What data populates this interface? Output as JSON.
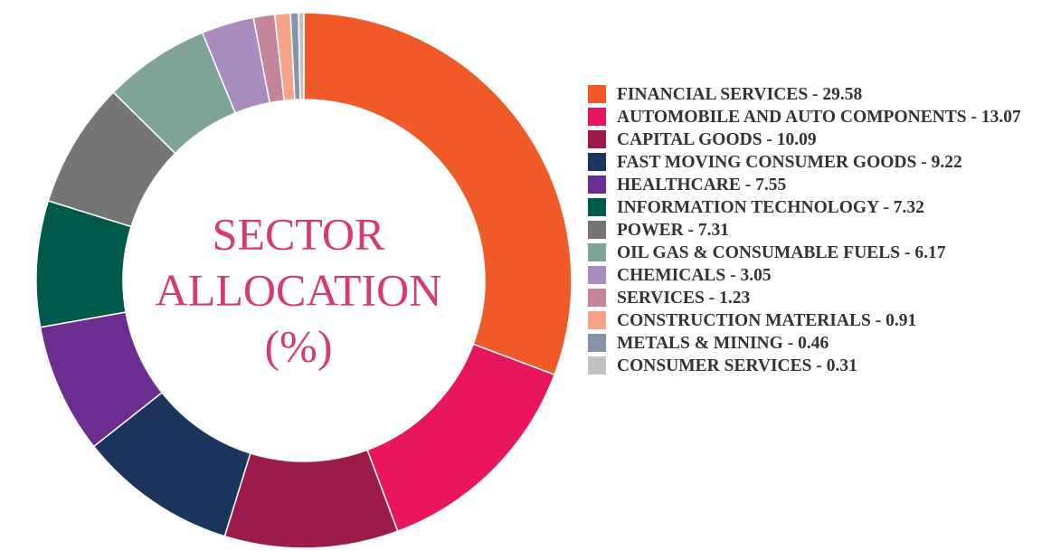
{
  "chart_data": {
    "type": "donut",
    "title_lines": [
      "SECTOR",
      "ALLOCATION",
      "(%)"
    ],
    "label_separator": " - ",
    "categories": [
      "FINANCIAL SERVICES",
      "AUTOMOBILE AND AUTO COMPONENTS",
      "CAPITAL GOODS",
      "FAST MOVING CONSUMER GOODS",
      "HEALTHCARE",
      "INFORMATION TECHNOLOGY",
      "POWER",
      "OIL GAS & CONSUMABLE FUELS",
      "CHEMICALS",
      "SERVICES",
      "CONSTRUCTION MATERIALS",
      "METALS & MINING",
      "CONSUMER SERVICES"
    ],
    "values": [
      29.58,
      13.07,
      10.09,
      9.22,
      7.55,
      7.32,
      7.31,
      6.17,
      3.05,
      1.23,
      0.91,
      0.46,
      0.31
    ],
    "colors": [
      "#f05a28",
      "#e8175d",
      "#9b1b4b",
      "#1c355e",
      "#6b2d8f",
      "#005a4b",
      "#757575",
      "#7fa398",
      "#a98bbf",
      "#c4849a",
      "#f5a48a",
      "#8694a8",
      "#c0c0c0"
    ]
  }
}
